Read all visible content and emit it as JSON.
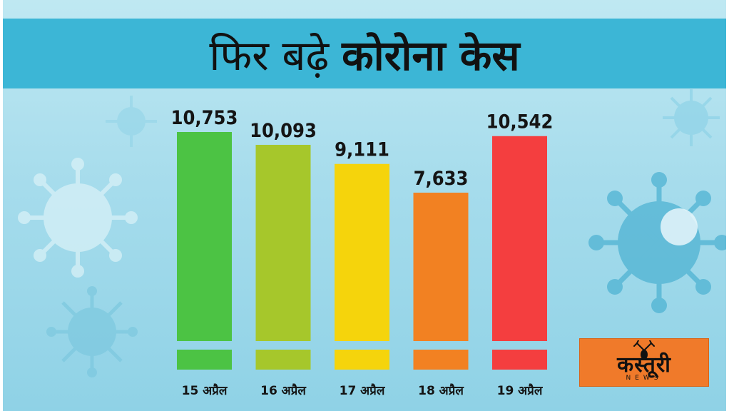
{
  "title": {
    "part1": "फिर बढ़े",
    "part2": "कोरोना केस"
  },
  "chart_data": {
    "type": "bar",
    "categories": [
      "15 अप्रैल",
      "16 अप्रैल",
      "17 अप्रैल",
      "18 अप्रैल",
      "19 अप्रैल"
    ],
    "values": [
      10753,
      10093,
      9111,
      7633,
      10542
    ],
    "value_labels": [
      "10,753",
      "10,093",
      "9,111",
      "7,633",
      "10,542"
    ],
    "colors": [
      "#4cc344",
      "#a6c72b",
      "#f5d40c",
      "#f28122",
      "#f43e3f"
    ],
    "title": "फिर बढ़े कोरोना केस",
    "xlabel": "",
    "ylabel": "",
    "ylim": [
      0,
      12000
    ],
    "grid": false
  },
  "logo": {
    "text": "कस्तूरी",
    "subtext": "NEWS",
    "deer_icon": "deer-head-icon"
  }
}
